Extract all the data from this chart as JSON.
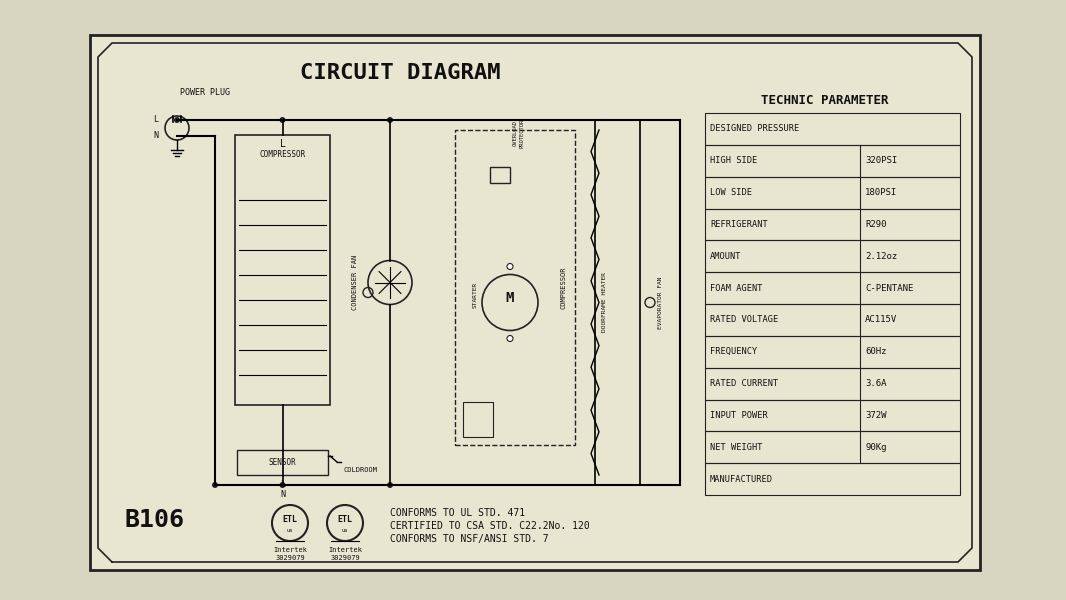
{
  "title": "CIRCUIT DIAGRAM",
  "bg_color": "#d8d5c0",
  "plate_bg": "#e8e5d0",
  "border_color": "#222222",
  "text_color": "#111111",
  "technic_title": "TECHNIC PARAMETER",
  "table_rows": [
    [
      "DESIGNED PRESSURE",
      ""
    ],
    [
      "HIGH SIDE",
      "320PSI"
    ],
    [
      "LOW SIDE",
      "180PSI"
    ],
    [
      "REFRIGERANT",
      "R290"
    ],
    [
      "AMOUNT",
      "2.12oz"
    ],
    [
      "FOAM AGENT",
      "C-PENTANE"
    ],
    [
      "RATED VOLTAGE",
      "AC115V"
    ],
    [
      "FREQUENCY",
      "60Hz"
    ],
    [
      "RATED CURRENT",
      "3.6A"
    ],
    [
      "INPUT POWER",
      "372W"
    ],
    [
      "NET WEIGHT",
      "90Kg"
    ],
    [
      "MANUFACTURED",
      ""
    ]
  ],
  "cert_text": [
    "CONFORMS TO UL STD. 471",
    "CERTIFIED TO CSA STD. C22.2No. 120",
    "CONFORMS TO NSF/ANSI STD. 7"
  ],
  "model": "B106",
  "intertek1": "Intertek\n3029079",
  "intertek2": "Intertek\n3029079"
}
